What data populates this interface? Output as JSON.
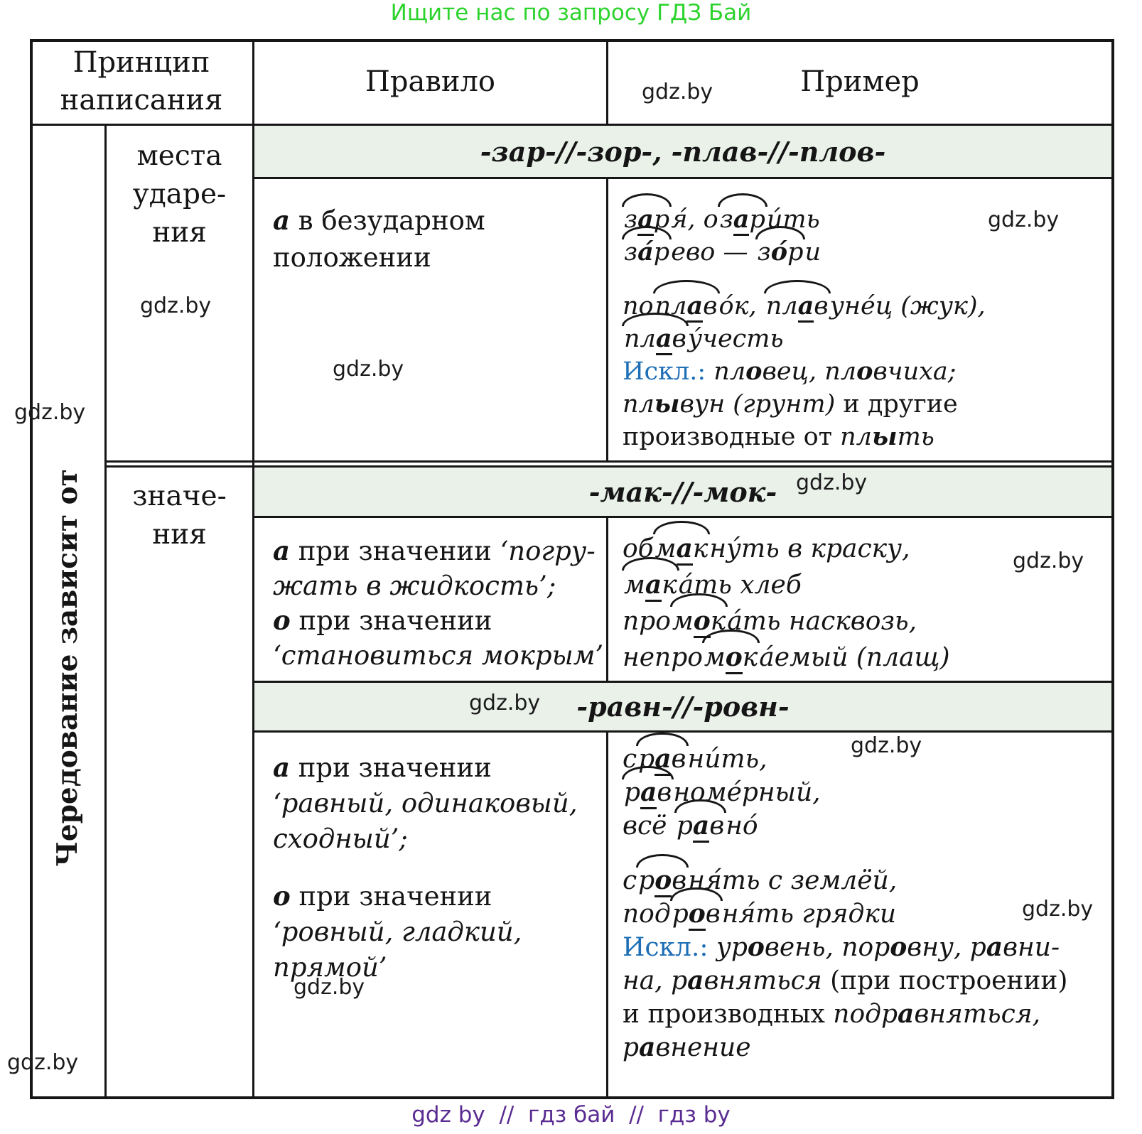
{
  "page": {
    "title": "Ищите нас по запросу ГДЗ Бай",
    "footer": "gdz by  //  гдз бай  //  гдз by",
    "watermark": "gdz.by"
  },
  "colors": {
    "band_bg": "#e9f1e9",
    "exception_blue": "#1e6fb5",
    "title_green": "#2dd32d",
    "footer_purple": "#5a2c92",
    "ink": "#151515"
  },
  "table": {
    "header": {
      "principle": "Принцип написания",
      "rule": "Правило",
      "example": "Пример"
    },
    "side_label": "Чередование зависит от",
    "factors": {
      "stress": [
        [
          {
            "t": "места"
          }
        ],
        [
          {
            "t": "ударе-"
          }
        ],
        [
          {
            "t": "ния"
          }
        ]
      ],
      "meaning": [
        [
          {
            "t": "значе-"
          }
        ],
        [
          {
            "t": "ния"
          }
        ]
      ]
    },
    "sections": [
      {
        "roots": "-зар-//-зор-, -плав-//-плов-",
        "rule_lines": [
          [
            {
              "t": "а",
              "c": "b i"
            },
            {
              "t": " в безударном"
            }
          ],
          [
            {
              "t": "положении"
            }
          ]
        ],
        "example_lines": [
          [
            {
              "arc": [
                {
                  "t": "з",
                  "c": "i"
                },
                {
                  "t": "а",
                  "c": "i b u"
                },
                {
                  "t": "р",
                  "c": "i"
                }
              ]
            },
            {
              "t": "я́, о",
              "c": "i"
            },
            {
              "arc": [
                {
                  "t": "з",
                  "c": "i"
                },
                {
                  "t": "а",
                  "c": "i b u"
                },
                {
                  "t": "р",
                  "c": "i"
                }
              ]
            },
            {
              "t": "и́ть",
              "c": "i"
            }
          ],
          [
            {
              "arc": [
                {
                  "t": "з",
                  "c": "i"
                },
                {
                  "t": "а́",
                  "c": "i b"
                },
                {
                  "t": "р",
                  "c": "i"
                }
              ]
            },
            {
              "t": "ево — ",
              "c": "i"
            },
            {
              "arc": [
                {
                  "t": "з",
                  "c": "i"
                },
                {
                  "t": "о́",
                  "c": "i b"
                },
                {
                  "t": "р",
                  "c": "i"
                }
              ]
            },
            {
              "t": "и",
              "c": "i"
            }
          ],
          [],
          [
            {
              "t": "по",
              "c": "i"
            },
            {
              "arc": [
                {
                  "t": "пл",
                  "c": "i"
                },
                {
                  "t": "а",
                  "c": "i b u"
                },
                {
                  "t": "в",
                  "c": "i"
                }
              ]
            },
            {
              "t": "о́к, ",
              "c": "i"
            },
            {
              "arc": [
                {
                  "t": "пл",
                  "c": "i"
                },
                {
                  "t": "а",
                  "c": "i b u"
                },
                {
                  "t": "в",
                  "c": "i"
                }
              ]
            },
            {
              "t": "уне́ц (жук),",
              "c": "i"
            }
          ],
          [
            {
              "arc": [
                {
                  "t": "пл",
                  "c": "i"
                },
                {
                  "t": "а",
                  "c": "i b u"
                },
                {
                  "t": "в",
                  "c": "i"
                }
              ]
            },
            {
              "t": "у́честь",
              "c": "i"
            }
          ],
          [
            {
              "t": "Искл.:",
              "c": "blue"
            },
            {
              "t": " пл",
              "c": "i"
            },
            {
              "t": "о",
              "c": "i b"
            },
            {
              "t": "вец, пл",
              "c": "i"
            },
            {
              "t": "о",
              "c": "i b"
            },
            {
              "t": "вчиха;",
              "c": "i"
            }
          ],
          [
            {
              "t": "пл",
              "c": "i"
            },
            {
              "t": "ы",
              "c": "i b"
            },
            {
              "t": "вун (грунт)",
              "c": "i"
            },
            {
              "t": " и другие"
            }
          ],
          [
            {
              "t": "производные от "
            },
            {
              "t": "пл",
              "c": "i"
            },
            {
              "t": "ы",
              "c": "i b"
            },
            {
              "t": "ть",
              "c": "i"
            }
          ]
        ]
      },
      {
        "roots": "-мак-//-мок-",
        "rule_lines": [
          [
            {
              "t": "а",
              "c": "b i"
            },
            {
              "t": " при значении "
            },
            {
              "t": "‘погру-",
              "c": "i"
            }
          ],
          [
            {
              "t": "жать в жидкость’;",
              "c": "i"
            }
          ],
          [
            {
              "t": "о",
              "c": "b i"
            },
            {
              "t": " при значении"
            }
          ],
          [
            {
              "t": "‘становиться мокрым’",
              "c": "i"
            }
          ]
        ],
        "example_lines": [
          [
            {
              "t": "об",
              "c": "i"
            },
            {
              "arc": [
                {
                  "t": "м",
                  "c": "i"
                },
                {
                  "t": "а",
                  "c": "i b u"
                },
                {
                  "t": "к",
                  "c": "i"
                }
              ]
            },
            {
              "t": "ну́ть в краску,",
              "c": "i"
            }
          ],
          [
            {
              "arc": [
                {
                  "t": "м",
                  "c": "i"
                },
                {
                  "t": "а",
                  "c": "i b u"
                },
                {
                  "t": "к",
                  "c": "i"
                }
              ]
            },
            {
              "t": "а́ть хлеб",
              "c": "i"
            }
          ],
          [
            {
              "t": "про",
              "c": "i"
            },
            {
              "arc": [
                {
                  "t": "м",
                  "c": "i"
                },
                {
                  "t": "о",
                  "c": "i b u"
                },
                {
                  "t": "к",
                  "c": "i"
                }
              ]
            },
            {
              "t": "а́ть насквозь,",
              "c": "i"
            }
          ],
          [
            {
              "t": "непро",
              "c": "i"
            },
            {
              "arc": [
                {
                  "t": "м",
                  "c": "i"
                },
                {
                  "t": "о",
                  "c": "i b u"
                },
                {
                  "t": "к",
                  "c": "i"
                }
              ]
            },
            {
              "t": "а́емый (плащ)",
              "c": "i"
            }
          ]
        ]
      },
      {
        "roots": "-равн-//-ровн-",
        "rule_lines": [
          [
            {
              "t": "а",
              "c": "b i"
            },
            {
              "t": " при значении"
            }
          ],
          [
            {
              "t": "‘равный, одинаковый,",
              "c": "i"
            }
          ],
          [
            {
              "t": "сходный’;",
              "c": "i"
            }
          ],
          [],
          [
            {
              "t": "о",
              "c": "b i"
            },
            {
              "t": " при значении"
            }
          ],
          [
            {
              "t": "‘ровный, гладкий,",
              "c": "i"
            }
          ],
          [
            {
              "t": "прямой’",
              "c": "i"
            }
          ]
        ],
        "example_lines": [
          [
            {
              "t": "с",
              "c": "i"
            },
            {
              "arc": [
                {
                  "t": "р",
                  "c": "i"
                },
                {
                  "t": "а",
                  "c": "i b u"
                },
                {
                  "t": "в",
                  "c": "i"
                }
              ]
            },
            {
              "t": "ни́ть,",
              "c": "i"
            }
          ],
          [
            {
              "arc": [
                {
                  "t": "р",
                  "c": "i"
                },
                {
                  "t": "а",
                  "c": "i b u"
                },
                {
                  "t": "в",
                  "c": "i"
                }
              ]
            },
            {
              "t": "номе́рный,",
              "c": "i"
            }
          ],
          [
            {
              "t": "всё ",
              "c": "i"
            },
            {
              "arc": [
                {
                  "t": "р",
                  "c": "i"
                },
                {
                  "t": "а",
                  "c": "i b u"
                },
                {
                  "t": "в",
                  "c": "i"
                }
              ]
            },
            {
              "t": "но́",
              "c": "i"
            }
          ],
          [],
          [
            {
              "t": "с",
              "c": "i"
            },
            {
              "arc": [
                {
                  "t": "р",
                  "c": "i"
                },
                {
                  "t": "о",
                  "c": "i b u"
                },
                {
                  "t": "в",
                  "c": "i"
                }
              ]
            },
            {
              "t": "ня́ть с землёй,",
              "c": "i"
            }
          ],
          [
            {
              "t": "под",
              "c": "i"
            },
            {
              "arc": [
                {
                  "t": "р",
                  "c": "i"
                },
                {
                  "t": "о",
                  "c": "i b u"
                },
                {
                  "t": "в",
                  "c": "i"
                }
              ]
            },
            {
              "t": "ня́ть грядки",
              "c": "i"
            }
          ],
          [
            {
              "t": "Искл.:",
              "c": "blue"
            },
            {
              "t": " ур",
              "c": "i"
            },
            {
              "t": "о",
              "c": "i b"
            },
            {
              "t": "вень, пор",
              "c": "i"
            },
            {
              "t": "о",
              "c": "i b"
            },
            {
              "t": "вну, р",
              "c": "i"
            },
            {
              "t": "а",
              "c": "i b"
            },
            {
              "t": "вни-",
              "c": "i"
            }
          ],
          [
            {
              "t": "на, р",
              "c": "i"
            },
            {
              "t": "а",
              "c": "i b"
            },
            {
              "t": "вняться ",
              "c": "i"
            },
            {
              "t": "(при построении)"
            }
          ],
          [
            {
              "t": "и производных "
            },
            {
              "t": "подр",
              "c": "i"
            },
            {
              "t": "а",
              "c": "i b"
            },
            {
              "t": "вняться,",
              "c": "i"
            }
          ],
          [
            {
              "t": "р",
              "c": "i"
            },
            {
              "t": "а",
              "c": "i b"
            },
            {
              "t": "внение",
              "c": "i"
            }
          ]
        ]
      }
    ]
  }
}
